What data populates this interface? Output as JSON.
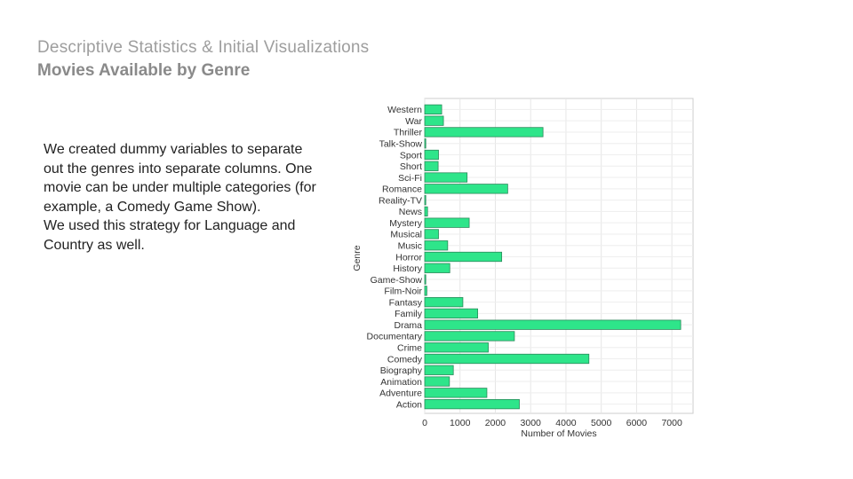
{
  "slide": {
    "kicker": "Descriptive Statistics & Initial Visualizations",
    "title": "Movies Available by Genre",
    "paragraphs": [
      "We created dummy variables to separate out the genres into separate columns. One movie can be under multiple categories (for example, a Comedy Game Show).",
      "We used this strategy for Language and Country as well."
    ]
  },
  "chart_data": {
    "type": "bar",
    "orientation": "horizontal",
    "title": "",
    "xlabel": "Number of Movies",
    "ylabel": "Genre",
    "xlim": [
      0,
      7600
    ],
    "xticks": [
      0,
      1000,
      2000,
      3000,
      4000,
      5000,
      6000,
      7000
    ],
    "grid": true,
    "bar_color": "#2ee58a",
    "bar_edge_color": "#2a8a5a",
    "categories": [
      "Western",
      "War",
      "Thriller",
      "Talk-Show",
      "Sport",
      "Short",
      "Sci-Fi",
      "Romance",
      "Reality-TV",
      "News",
      "Mystery",
      "Musical",
      "Music",
      "Horror",
      "History",
      "Game-Show",
      "Film-Noir",
      "Fantasy",
      "Family",
      "Drama",
      "Documentary",
      "Crime",
      "Comedy",
      "Biography",
      "Animation",
      "Adventure",
      "Action"
    ],
    "values": [
      480,
      530,
      3350,
      5,
      390,
      380,
      1200,
      2350,
      10,
      80,
      1260,
      390,
      650,
      2180,
      710,
      5,
      60,
      1080,
      1500,
      7250,
      2540,
      1800,
      4650,
      810,
      700,
      1760,
      2680
    ]
  }
}
